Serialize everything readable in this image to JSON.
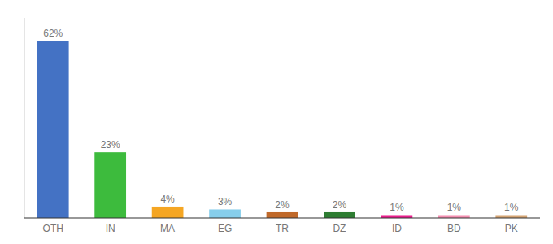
{
  "chart_data": {
    "type": "bar",
    "categories": [
      "OTH",
      "IN",
      "MA",
      "EG",
      "TR",
      "DZ",
      "ID",
      "BD",
      "PK"
    ],
    "values": [
      62,
      23,
      4,
      3,
      2,
      2,
      1,
      1,
      1
    ],
    "value_labels": [
      "62%",
      "23%",
      "4%",
      "3%",
      "2%",
      "2%",
      "1%",
      "1%",
      "1%"
    ],
    "colors": [
      "#4472c4",
      "#3dbb3d",
      "#f5a623",
      "#87ceeb",
      "#c0692a",
      "#2e7d32",
      "#e91e8c",
      "#f48fb1",
      "#d4a574"
    ],
    "ylim": [
      0,
      70
    ],
    "data_labels": true,
    "tick_labels": "x"
  }
}
